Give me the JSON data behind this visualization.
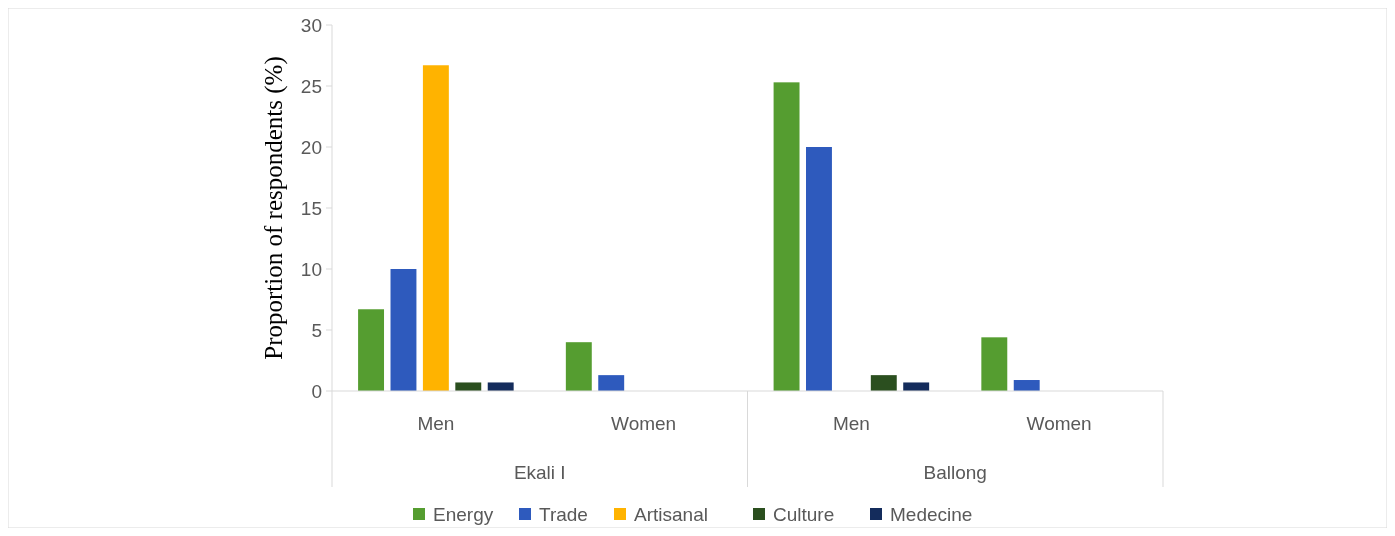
{
  "chart_data": {
    "type": "bar",
    "ylabel": "Proportion of respondents (%)",
    "categories": [
      "Men",
      "Women",
      "Men",
      "Women"
    ],
    "annotations": [
      "Ekali I",
      "Ballong"
    ],
    "series": [
      {
        "name": "Energy",
        "color": "#559d30",
        "values": [
          6.7,
          4,
          25.3,
          4.4
        ]
      },
      {
        "name": "Trade",
        "color": "#2e5abd",
        "values": [
          10,
          1.3,
          20,
          0.9
        ]
      },
      {
        "name": "Artisanal",
        "color": "#ffb300",
        "values": [
          26.7,
          0,
          0,
          0
        ]
      },
      {
        "name": "Culture",
        "color": "#2b4f1f",
        "values": [
          0.7,
          0,
          1.3,
          0
        ]
      },
      {
        "name": "Medecine",
        "color": "#142c5c",
        "values": [
          0.7,
          0,
          0.7,
          0
        ]
      }
    ],
    "ylim": [
      0,
      30
    ],
    "yticks": [
      0,
      5,
      10,
      15,
      20,
      25,
      30
    ],
    "legend": "bottom"
  }
}
